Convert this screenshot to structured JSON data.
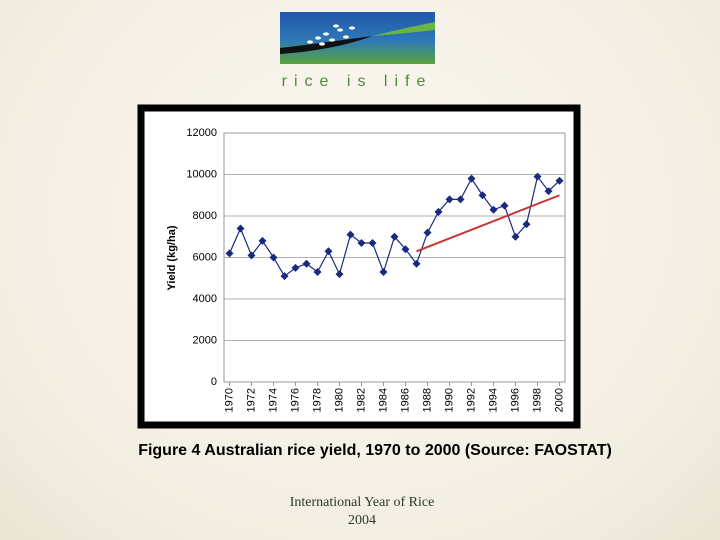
{
  "header": {
    "logo_text": "rice is life"
  },
  "chart_data": {
    "type": "line",
    "y_label": "Yield (kg/ha)",
    "x": [
      1970,
      1971,
      1972,
      1973,
      1974,
      1975,
      1976,
      1977,
      1978,
      1979,
      1980,
      1981,
      1982,
      1983,
      1984,
      1985,
      1986,
      1987,
      1988,
      1989,
      1990,
      1991,
      1992,
      1993,
      1994,
      1995,
      1996,
      1997,
      1998,
      1999,
      2000
    ],
    "values": [
      6200,
      7400,
      6100,
      6800,
      6000,
      5100,
      5500,
      5700,
      5300,
      6300,
      5200,
      7100,
      6700,
      6700,
      5300,
      7000,
      6400,
      5700,
      7200,
      8200,
      8800,
      8800,
      9800,
      9000,
      8300,
      8500,
      7000,
      7600,
      9900,
      9200,
      9700
    ],
    "color": "#1a2a80",
    "trend": {
      "x": [
        1987,
        2000
      ],
      "values": [
        6300,
        9000
      ],
      "color": "#cc3333"
    },
    "xlim": [
      1969.5,
      2000.5
    ],
    "xticks": [
      1970,
      1972,
      1974,
      1976,
      1978,
      1980,
      1982,
      1984,
      1986,
      1988,
      1990,
      1992,
      1994,
      1996,
      1998,
      2000
    ],
    "ylim": [
      0,
      12000
    ],
    "yticks": [
      0,
      2000,
      4000,
      6000,
      8000,
      10000,
      12000
    ],
    "grid": true
  },
  "caption": "Figure 4 Australian rice yield, 1970 to 2000 (Source: FAOSTAT)",
  "footer": [
    "International Year of Rice",
    "2004"
  ]
}
